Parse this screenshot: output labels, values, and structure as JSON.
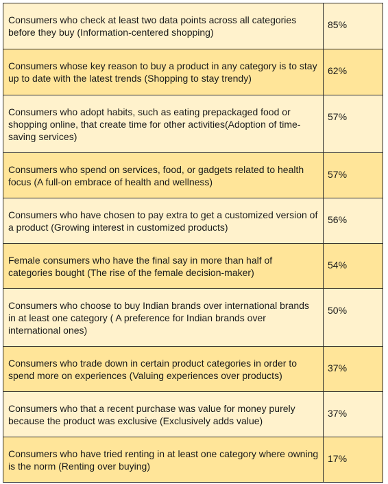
{
  "colors": {
    "row_light": "#fff2cc",
    "row_dark": "#ffe599",
    "border": "#2b2b2b"
  },
  "rows": [
    {
      "description": "Consumers who check at least two data points across all categories before they buy (Information-centered shopping)",
      "percent": "85%"
    },
    {
      "description": "Consumers whose key reason to buy a product in any category is to stay up to date with the latest trends (Shopping to stay trendy)",
      "percent": "62%"
    },
    {
      "description": "Consumers who adopt habits, such as eating prepackaged food or shopping online, that create time for other activities(Adoption of time-saving services)",
      "percent": "57%"
    },
    {
      "description": "Consumers who spend on services, food, or gadgets related to health focus (A full-on embrace of health and wellness)",
      "percent": "57%"
    },
    {
      "description": "Consumers who have chosen to pay extra to get a customized version of a product (Growing interest in customized products)",
      "percent": "56%"
    },
    {
      "description": "Female consumers who have the final say in more than half of categories bought (The rise of the female decision-maker)",
      "percent": "54%"
    },
    {
      "description": "Consumers who choose to buy Indian brands over international brands in at least one category ( A preference for Indian brands over international ones)",
      "percent": "50%"
    },
    {
      "description": "Consumers who trade down in certain product categories in order to spend more on experiences (Valuing experiences over products)",
      "percent": "37%"
    },
    {
      "description": "Consumers who that a recent purchase was value for money purely because the product was exclusive (Exclusively adds value)",
      "percent": "37%"
    },
    {
      "description": "Consumers who have tried renting in at least one category where owning is the norm (Renting over buying)",
      "percent": "17%"
    }
  ]
}
